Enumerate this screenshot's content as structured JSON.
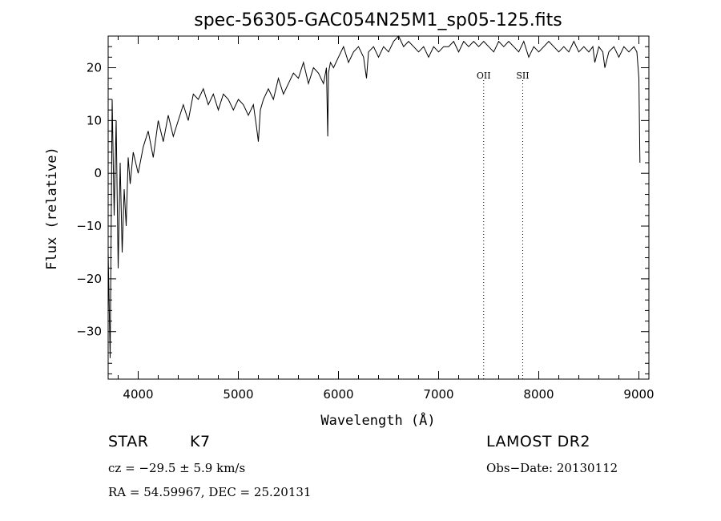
{
  "chart_data": {
    "type": "line",
    "title": "spec-56305-GAC054N25M1_sp05-125.fits",
    "xlabel": "Wavelength (Å)",
    "ylabel": "Flux (relative)",
    "xlim": [
      3700,
      9100
    ],
    "ylim": [
      -39,
      26
    ],
    "xticks": [
      4000,
      5000,
      6000,
      7000,
      8000,
      9000
    ],
    "xtick_labels": [
      "4000",
      "5000",
      "6000",
      "7000",
      "8000",
      "9000"
    ],
    "yticks": [
      20,
      10,
      0,
      -10,
      -20,
      -30
    ],
    "ytick_labels": [
      "20",
      "10",
      "0",
      "−10",
      "−20",
      "−30"
    ],
    "grid": false,
    "series": [
      {
        "x": [
          3700,
          3720,
          3740,
          3760,
          3780,
          3800,
          3820,
          3840,
          3860,
          3880,
          3900,
          3920,
          3950,
          4000,
          4050,
          4100,
          4150,
          4200,
          4250,
          4300,
          4350,
          4400,
          4450,
          4500,
          4550,
          4600,
          4650,
          4700,
          4750,
          4800,
          4850,
          4900,
          4950,
          5000,
          5050,
          5100,
          5150,
          5180,
          5200,
          5220,
          5250,
          5300,
          5350,
          5400,
          5450,
          5500,
          5550,
          5600,
          5650,
          5700,
          5750,
          5800,
          5850,
          5880,
          5893,
          5900,
          5920,
          5950,
          6000,
          6050,
          6100,
          6150,
          6200,
          6250,
          6280,
          6300,
          6350,
          6400,
          6450,
          6500,
          6550,
          6600,
          6650,
          6700,
          6750,
          6800,
          6850,
          6900,
          6950,
          7000,
          7050,
          7100,
          7150,
          7200,
          7250,
          7300,
          7350,
          7400,
          7450,
          7500,
          7550,
          7600,
          7650,
          7700,
          7750,
          7800,
          7850,
          7900,
          7950,
          8000,
          8050,
          8100,
          8150,
          8200,
          8250,
          8300,
          8350,
          8400,
          8450,
          8500,
          8540,
          8560,
          8600,
          8640,
          8660,
          8700,
          8750,
          8800,
          8850,
          8900,
          8950,
          8980,
          9000,
          9010
        ],
        "y": [
          -15,
          -35,
          14,
          -8,
          10,
          -18,
          2,
          -15,
          -3,
          -10,
          3,
          -2,
          4,
          0,
          5,
          8,
          3,
          10,
          6,
          11,
          7,
          10,
          13,
          10,
          15,
          14,
          16,
          13,
          15,
          12,
          15,
          14,
          12,
          14,
          13,
          11,
          13,
          9,
          6,
          12,
          14,
          16,
          14,
          18,
          15,
          17,
          19,
          18,
          21,
          17,
          20,
          19,
          17,
          20,
          7,
          19,
          21,
          20,
          22,
          24,
          21,
          23,
          24,
          22,
          18,
          23,
          24,
          22,
          24,
          23,
          25,
          26,
          24,
          25,
          24,
          23,
          24,
          22,
          24,
          23,
          24,
          24,
          25,
          23,
          25,
          24,
          25,
          24,
          25,
          24,
          23,
          25,
          24,
          25,
          24,
          23,
          25,
          22,
          24,
          23,
          24,
          25,
          24,
          23,
          24,
          23,
          25,
          23,
          24,
          23,
          24,
          21,
          24,
          23,
          20,
          23,
          24,
          22,
          24,
          23,
          24,
          23,
          18,
          2
        ]
      }
    ],
    "annotations": [
      {
        "text": "OII",
        "x": 7450
      },
      {
        "text": "SII",
        "x": 7840
      }
    ]
  },
  "footer": {
    "class_label": "STAR",
    "subclass": "K7",
    "survey": "LAMOST DR2",
    "cz_line": "cz = −29.5 ± 5.9 km/s",
    "obs_date": "Obs−Date: 20130112",
    "radec_line": "RA =  54.59967, DEC =  25.20131"
  }
}
